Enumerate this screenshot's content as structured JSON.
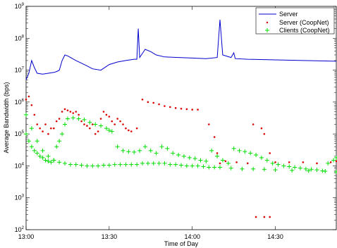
{
  "chart_data": {
    "type": "line",
    "title": "",
    "xlabel": "Time of Day",
    "ylabel": "Average Bandwidth (bps)",
    "yscale": "log",
    "ylim": [
      100,
      1000000000
    ],
    "xlim": [
      "13:00",
      "14:52"
    ],
    "x_ticks": [
      "13:00",
      "13:30",
      "14:00",
      "14:30"
    ],
    "y_ticks": [
      {
        "exp": "2"
      },
      {
        "exp": "3"
      },
      {
        "exp": "4"
      },
      {
        "exp": "5"
      },
      {
        "exp": "6"
      },
      {
        "exp": "7"
      },
      {
        "exp": "8"
      },
      {
        "exp": "9"
      }
    ],
    "y_tick_base": "10",
    "grid": false,
    "legend_position": "top-right",
    "series": [
      {
        "name": "Server",
        "style": "line",
        "color": "#0000cc",
        "points": [
          [
            "13:00",
            5000000
          ],
          [
            "13:01",
            8000000
          ],
          [
            "13:02",
            20000000
          ],
          [
            "13:03",
            12000000
          ],
          [
            "13:04",
            8000000
          ],
          [
            "13:06",
            7500000
          ],
          [
            "13:08",
            8000000
          ],
          [
            "13:10",
            8500000
          ],
          [
            "13:11",
            9000000
          ],
          [
            "13:12",
            10000000
          ],
          [
            "13:13",
            20000000
          ],
          [
            "13:14",
            30000000
          ],
          [
            "13:15",
            28000000
          ],
          [
            "13:18",
            20000000
          ],
          [
            "13:21",
            15000000
          ],
          [
            "13:24",
            11000000
          ],
          [
            "13:27",
            10000000
          ],
          [
            "13:30",
            15000000
          ],
          [
            "13:33",
            18000000
          ],
          [
            "13:36",
            20000000
          ],
          [
            "13:39",
            22000000
          ],
          [
            "13:40",
            22000000
          ],
          [
            "13:40.5",
            200000000
          ],
          [
            "13:41",
            25000000
          ],
          [
            "13:43",
            45000000
          ],
          [
            "13:45",
            38000000
          ],
          [
            "13:47",
            30000000
          ],
          [
            "13:50",
            26000000
          ],
          [
            "13:55",
            25000000
          ],
          [
            "14:00",
            24000000
          ],
          [
            "14:05",
            23000000
          ],
          [
            "14:09",
            25000000
          ],
          [
            "14:10",
            380000000
          ],
          [
            "14:11",
            30000000
          ],
          [
            "14:14",
            25000000
          ],
          [
            "14:15",
            35000000
          ],
          [
            "14:15.5",
            23000000
          ],
          [
            "14:20",
            22000000
          ],
          [
            "14:30",
            21000000
          ],
          [
            "14:40",
            20000000
          ],
          [
            "14:52",
            19000000
          ]
        ]
      },
      {
        "name": "Server (CoopNet)",
        "style": "dots",
        "color": "#dd0000",
        "points": [
          [
            "13:00",
            1200000
          ],
          [
            "13:01",
            1500000
          ],
          [
            "13:02",
            800000
          ],
          [
            "13:03",
            400000
          ],
          [
            "13:04",
            200000
          ],
          [
            "13:05",
            150000
          ],
          [
            "13:06",
            120000
          ],
          [
            "13:07",
            200000
          ],
          [
            "13:08",
            100000
          ],
          [
            "13:09",
            150000
          ],
          [
            "13:10",
            150000
          ],
          [
            "13:11",
            250000
          ],
          [
            "13:12",
            300000
          ],
          [
            "13:13",
            500000
          ],
          [
            "13:14",
            600000
          ],
          [
            "13:15",
            550000
          ],
          [
            "13:16",
            500000
          ],
          [
            "13:17",
            450000
          ],
          [
            "13:18",
            500000
          ],
          [
            "13:19",
            400000
          ],
          [
            "13:20",
            250000
          ],
          [
            "13:21",
            200000
          ],
          [
            "13:22",
            180000
          ],
          [
            "13:23",
            150000
          ],
          [
            "13:24",
            200000
          ],
          [
            "13:25",
            100000
          ],
          [
            "13:26",
            120000
          ],
          [
            "13:27",
            300000
          ],
          [
            "13:28",
            500000
          ],
          [
            "13:29",
            400000
          ],
          [
            "13:30",
            350000
          ],
          [
            "13:31",
            250000
          ],
          [
            "13:32",
            200000
          ],
          [
            "13:33",
            300000
          ],
          [
            "13:34",
            250000
          ],
          [
            "13:35",
            200000
          ],
          [
            "13:36",
            150000
          ],
          [
            "13:37",
            130000
          ],
          [
            "13:38",
            120000
          ],
          [
            "13:40",
            150000
          ],
          [
            "13:42",
            1200000
          ],
          [
            "13:44",
            1000000
          ],
          [
            "13:46",
            950000
          ],
          [
            "13:48",
            850000
          ],
          [
            "13:50",
            750000
          ],
          [
            "13:52",
            700000
          ],
          [
            "13:54",
            650000
          ],
          [
            "13:56",
            620000
          ],
          [
            "13:58",
            600000
          ],
          [
            "14:00",
            580000
          ],
          [
            "14:02",
            580000
          ],
          [
            "14:06",
            200000
          ],
          [
            "14:08",
            80000
          ],
          [
            "14:09",
            25000
          ],
          [
            "14:10",
            12000
          ],
          [
            "14:12",
            14000
          ],
          [
            "14:16",
            13000
          ],
          [
            "14:20",
            12000
          ],
          [
            "14:22",
            200000
          ],
          [
            "14:23",
            250
          ],
          [
            "14:26",
            250
          ],
          [
            "14:28",
            250
          ],
          [
            "14:25",
            150000
          ],
          [
            "14:26",
            100000
          ],
          [
            "14:28",
            25000
          ],
          [
            "14:30",
            13000
          ],
          [
            "14:35",
            13000
          ],
          [
            "14:40",
            13000
          ],
          [
            "14:45",
            12000
          ],
          [
            "14:50",
            13000
          ],
          [
            "14:52",
            14000
          ]
        ]
      },
      {
        "name": "Clients (CoopNet)",
        "style": "plus",
        "color": "#00dd00",
        "points": [
          [
            "13:00",
            100000
          ],
          [
            "13:01",
            60000
          ],
          [
            "13:02",
            40000
          ],
          [
            "13:03",
            30000
          ],
          [
            "13:04",
            25000
          ],
          [
            "13:05",
            20000
          ],
          [
            "13:06",
            18000
          ],
          [
            "13:07",
            15000
          ],
          [
            "13:08",
            14000
          ],
          [
            "13:09",
            13000
          ],
          [
            "13:10",
            15000
          ],
          [
            "13:11",
            40000
          ],
          [
            "13:12",
            60000
          ],
          [
            "13:13",
            100000
          ],
          [
            "13:14",
            200000
          ],
          [
            "13:15",
            300000
          ],
          [
            "13:17",
            320000
          ],
          [
            "13:19",
            300000
          ],
          [
            "13:21",
            280000
          ],
          [
            "13:23",
            230000
          ],
          [
            "13:25",
            200000
          ],
          [
            "13:27",
            180000
          ],
          [
            "13:29",
            150000
          ],
          [
            "13:30",
            130000
          ],
          [
            "13:31",
            120000
          ],
          [
            "13:33",
            40000
          ],
          [
            "13:35",
            30000
          ],
          [
            "13:37",
            28000
          ],
          [
            "13:39",
            27000
          ],
          [
            "13:41",
            30000
          ],
          [
            "13:43",
            40000
          ],
          [
            "13:45",
            30000
          ],
          [
            "13:47",
            25000
          ],
          [
            "13:49",
            40000
          ],
          [
            "13:51",
            35000
          ],
          [
            "13:53",
            25000
          ],
          [
            "13:55",
            22000
          ],
          [
            "13:57",
            20000
          ],
          [
            "13:59",
            18000
          ],
          [
            "14:01",
            17000
          ],
          [
            "14:03",
            15000
          ],
          [
            "14:05",
            14000
          ],
          [
            "14:07",
            30000
          ],
          [
            "14:09",
            20000
          ],
          [
            "14:11",
            15000
          ],
          [
            "14:13",
            12000
          ],
          [
            "14:15",
            35000
          ],
          [
            "14:17",
            30000
          ],
          [
            "14:19",
            28000
          ],
          [
            "14:21",
            25000
          ],
          [
            "14:23",
            22000
          ],
          [
            "14:25",
            18000
          ],
          [
            "14:27",
            15000
          ],
          [
            "14:29",
            12000
          ],
          [
            "14:31",
            11000
          ],
          [
            "14:33",
            10000
          ],
          [
            "14:35",
            9500
          ],
          [
            "14:37",
            9000
          ],
          [
            "14:39",
            8500
          ],
          [
            "14:41",
            8000
          ],
          [
            "14:43",
            7800
          ],
          [
            "14:45",
            7500
          ],
          [
            "14:47",
            7000
          ],
          [
            "14:49",
            12000
          ],
          [
            "14:51",
            15000
          ],
          [
            "14:52",
            18000
          ]
        ]
      },
      {
        "name": "",
        "style": "plus",
        "color": "#00dd00",
        "points": [
          [
            "13:00",
            400000
          ],
          [
            "13:02",
            150000
          ],
          [
            "13:04",
            60000
          ],
          [
            "13:06",
            30000
          ],
          [
            "13:08",
            20000
          ],
          [
            "13:10",
            15000
          ],
          [
            "13:12",
            13000
          ],
          [
            "13:14",
            12000
          ],
          [
            "13:16",
            11000
          ],
          [
            "13:18",
            11000
          ],
          [
            "13:20",
            10500
          ],
          [
            "13:22",
            10000
          ],
          [
            "13:24",
            10000
          ],
          [
            "13:26",
            10000
          ],
          [
            "13:28",
            10500
          ],
          [
            "13:30",
            10500
          ],
          [
            "13:32",
            11000
          ],
          [
            "13:34",
            11000
          ],
          [
            "13:36",
            11000
          ],
          [
            "13:38",
            11000
          ],
          [
            "13:40",
            11000
          ],
          [
            "13:42",
            12000
          ],
          [
            "13:44",
            12000
          ],
          [
            "13:46",
            12000
          ],
          [
            "13:48",
            12000
          ],
          [
            "13:50",
            12000
          ],
          [
            "13:52",
            11000
          ],
          [
            "13:54",
            11000
          ],
          [
            "13:56",
            10500
          ],
          [
            "13:58",
            10000
          ],
          [
            "14:00",
            10000
          ],
          [
            "14:02",
            10000
          ],
          [
            "14:04",
            9500
          ],
          [
            "14:06",
            9000
          ],
          [
            "14:08",
            9000
          ],
          [
            "14:10",
            9000
          ],
          [
            "14:14",
            8500
          ],
          [
            "14:18",
            8000
          ],
          [
            "14:22",
            8000
          ],
          [
            "14:26",
            7800
          ],
          [
            "14:30",
            7500
          ],
          [
            "14:36",
            7200
          ],
          [
            "14:42",
            7000
          ],
          [
            "14:48",
            6800
          ],
          [
            "14:52",
            6500
          ]
        ]
      }
    ]
  }
}
